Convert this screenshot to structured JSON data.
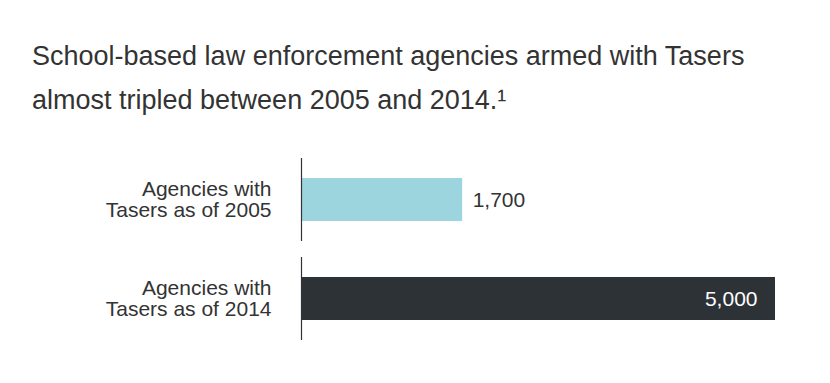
{
  "chart_data": {
    "type": "bar",
    "title": "School-based law enforcement agencies armed with Tasers almost tripled between 2005 and 2014.¹",
    "orientation": "horizontal",
    "categories": [
      "Agencies with Tasers as of 2005",
      "Agencies with Tasers as of 2014"
    ],
    "values": [
      1700,
      5000
    ],
    "value_labels": [
      "1,700",
      "5,000"
    ],
    "colors": [
      "#9dd5df",
      "#2d3237"
    ],
    "xlim": [
      0,
      5000
    ],
    "data_labels": true,
    "tick_labels": "y",
    "grid": false
  }
}
